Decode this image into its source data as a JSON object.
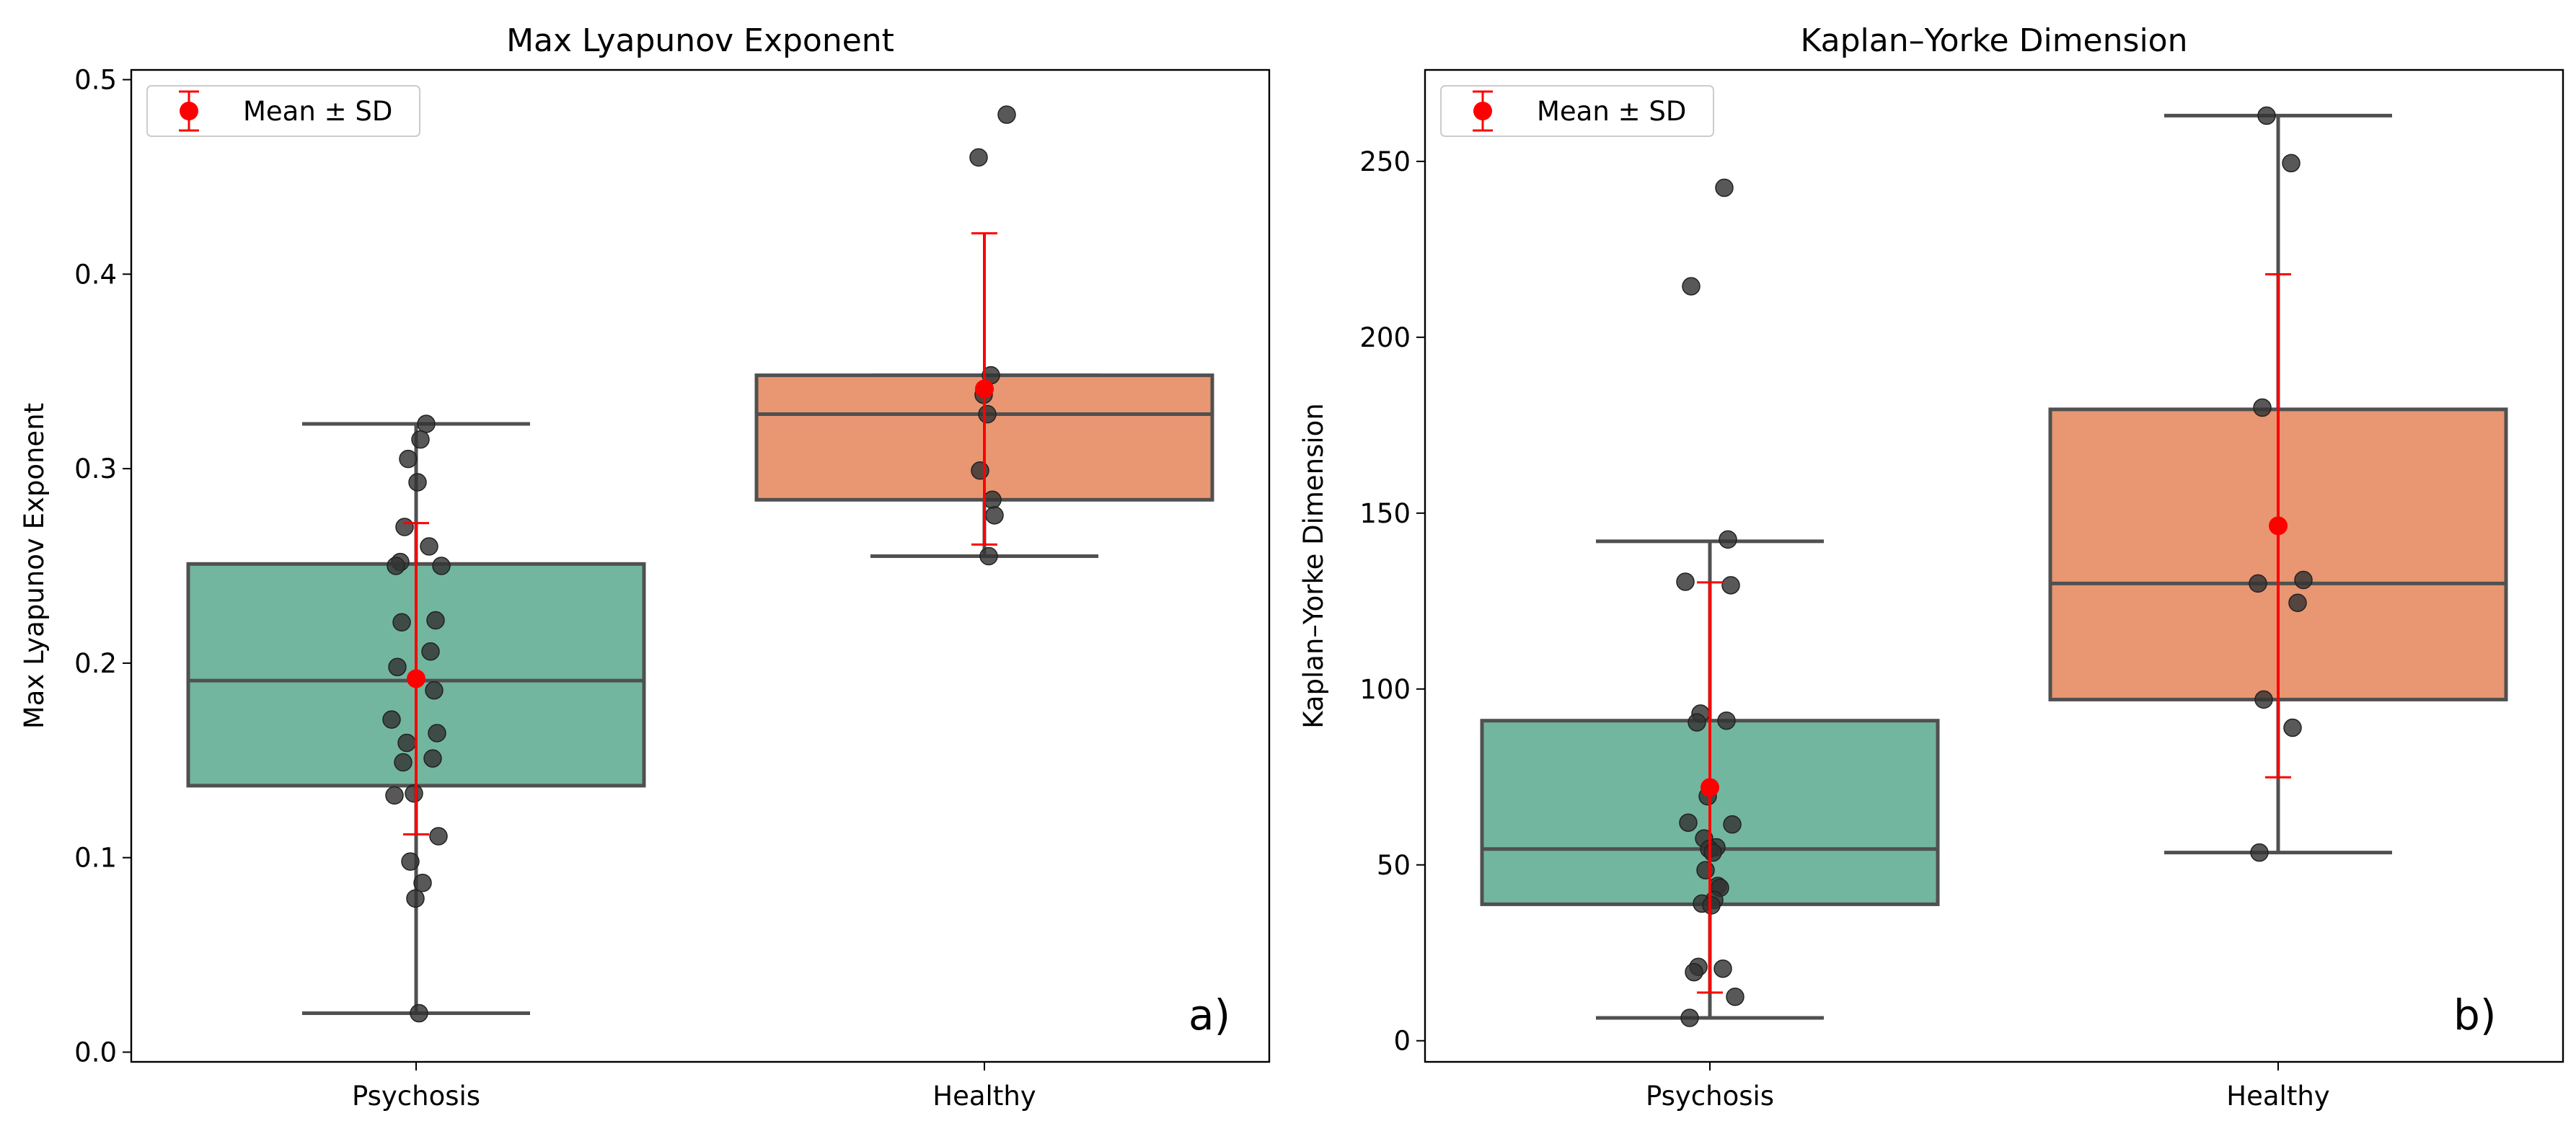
{
  "colors": {
    "psychosis_box": "#72b6a0",
    "healthy_box": "#e99672",
    "box_edge": "#505050",
    "points": "#333333",
    "mean_sd": "#ff0000"
  },
  "chart_data": [
    {
      "type": "box",
      "title": "Max Lyapunov Exponent",
      "xlabel": "",
      "ylabel": "Max Lyapunov Exponent",
      "ylim": [
        -0.005,
        0.505
      ],
      "yticks": [
        0.0,
        0.1,
        0.2,
        0.3,
        0.4,
        0.5
      ],
      "ytick_labels": [
        "0.0",
        "0.1",
        "0.2",
        "0.3",
        "0.4",
        "0.5"
      ],
      "categories": [
        "Psychosis",
        "Healthy"
      ],
      "legend": {
        "label": "Mean ± SD",
        "position": "upper-left"
      },
      "panel_label": "a)",
      "boxes": [
        {
          "group": "Psychosis",
          "whisker_low": 0.02,
          "q1": 0.137,
          "median": 0.191,
          "q3": 0.251,
          "whisker_high": 0.323,
          "mean": 0.192,
          "sd": 0.08
        },
        {
          "group": "Healthy",
          "whisker_low": 0.255,
          "q1": 0.284,
          "median": 0.328,
          "q3": 0.348,
          "whisker_high": 0.348,
          "mean": 0.341,
          "sd": 0.08
        }
      ],
      "points": [
        {
          "group": "Psychosis",
          "values": [
            0.323,
            0.315,
            0.305,
            0.293,
            0.27,
            0.26,
            0.252,
            0.25,
            0.25,
            0.222,
            0.221,
            0.206,
            0.198,
            0.186,
            0.171,
            0.164,
            0.159,
            0.151,
            0.149,
            0.133,
            0.132,
            0.111,
            0.098,
            0.087,
            0.079,
            0.02
          ]
        },
        {
          "group": "Healthy",
          "values": [
            0.482,
            0.46,
            0.348,
            0.338,
            0.328,
            0.299,
            0.284,
            0.276,
            0.255
          ]
        }
      ]
    },
    {
      "type": "box",
      "title": "Kaplan–Yorke Dimension",
      "xlabel": "",
      "ylabel": "Kaplan–Yorke Dimension",
      "ylim": [
        -6,
        276
      ],
      "yticks": [
        0,
        50,
        100,
        150,
        200,
        250
      ],
      "ytick_labels": [
        "0",
        "50",
        "100",
        "150",
        "200",
        "250"
      ],
      "categories": [
        "Psychosis",
        "Healthy"
      ],
      "legend": {
        "label": "Mean ± SD",
        "position": "upper-left"
      },
      "panel_label": "b)",
      "boxes": [
        {
          "group": "Psychosis",
          "whisker_low": 6.5,
          "q1": 38.8,
          "median": 54.5,
          "q3": 91.0,
          "whisker_high": 142.0,
          "mean": 72.0,
          "sd": 58.3
        },
        {
          "group": "Healthy",
          "whisker_low": 53.5,
          "q1": 97.0,
          "median": 130.0,
          "q3": 179.5,
          "whisker_high": 263.0,
          "mean": 146.4,
          "sd": 71.5
        }
      ],
      "points": [
        {
          "group": "Psychosis",
          "values": [
            242.5,
            214.5,
            142.5,
            130.5,
            129.5,
            93.0,
            91.0,
            90.5,
            69.5,
            62.0,
            61.5,
            57.5,
            55.0,
            54.5,
            53.5,
            48.5,
            44.0,
            43.5,
            40.0,
            39.0,
            38.5,
            21.0,
            20.5,
            19.5,
            12.5,
            6.5
          ]
        },
        {
          "group": "Healthy",
          "values": [
            263.0,
            249.5,
            180.0,
            131.0,
            130.0,
            124.5,
            97.0,
            89.0,
            53.5
          ]
        }
      ]
    }
  ]
}
